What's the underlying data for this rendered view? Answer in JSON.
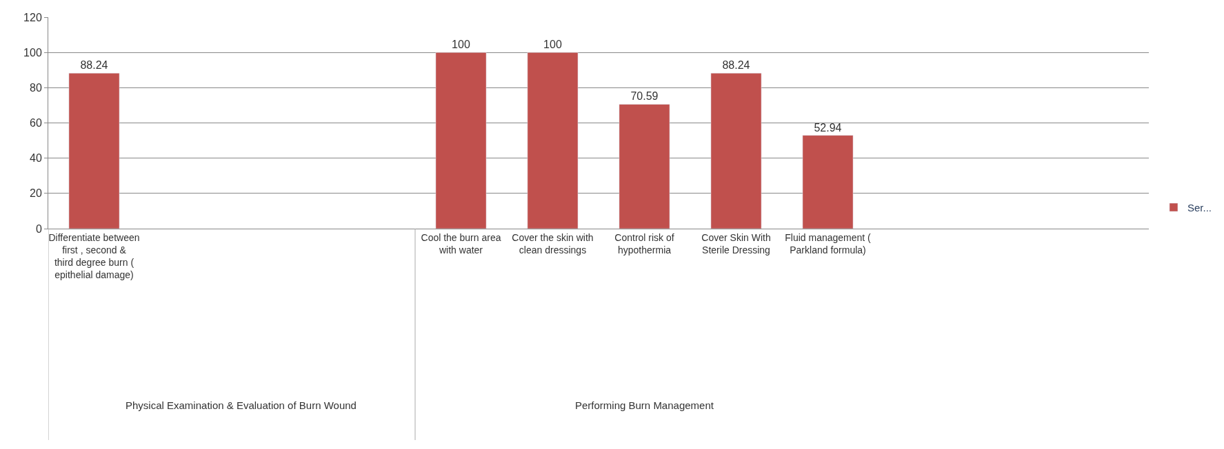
{
  "chart_data": {
    "type": "bar",
    "categories": [
      "Differentiate between first , second & third degree burn ( epithelial damage)",
      null,
      null,
      null,
      "Cool the burn area with water",
      "Cover the skin with clean dressings",
      "Control risk of hypothermia",
      "Cover Skin With Sterile Dressing",
      "Fluid management ( Parkland formula)",
      null,
      null,
      null
    ],
    "series": [
      {
        "name": "Ser...",
        "color": "#c0504d",
        "values": [
          88.24,
          null,
          null,
          null,
          100,
          100,
          70.59,
          88.24,
          52.94,
          null,
          null,
          null
        ]
      }
    ],
    "ylim": [
      0,
      120
    ],
    "yticks": [
      0,
      20,
      40,
      60,
      80,
      100,
      120
    ],
    "grid": "y",
    "legend": "right",
    "data_labels": true,
    "annotations": [
      "Physical Examination & Evaluation of Burn Wound",
      "Performing Burn Management"
    ]
  }
}
